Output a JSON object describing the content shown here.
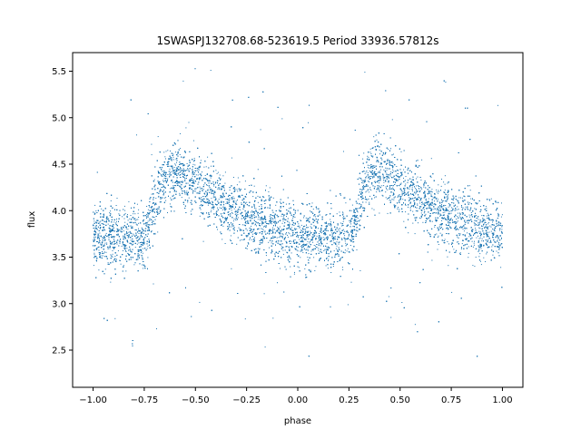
{
  "chart_data": {
    "type": "scatter",
    "title": "1SWASPJ132708.68-523619.5 Period 33936.57812s",
    "xlabel": "phase",
    "ylabel": "flux",
    "xlim": [
      -1.1,
      1.1
    ],
    "ylim": [
      2.1,
      5.7
    ],
    "xticks": [
      -1.0,
      -0.75,
      -0.5,
      -0.25,
      0.0,
      0.25,
      0.5,
      0.75,
      1.0
    ],
    "xtick_labels": [
      "−1.00",
      "−0.75",
      "−0.50",
      "−0.25",
      "0.00",
      "0.25",
      "0.50",
      "0.75",
      "1.00"
    ],
    "yticks": [
      2.5,
      3.0,
      3.5,
      4.0,
      4.5,
      5.0,
      5.5
    ],
    "ytick_labels": [
      "2.5",
      "3.0",
      "3.5",
      "4.0",
      "4.5",
      "5.0",
      "5.5"
    ],
    "grid": false,
    "marker_color": "#1f77b4",
    "series": [
      {
        "profile_phase": [
          0.0,
          0.2,
          0.25,
          0.3,
          0.35,
          0.4,
          0.5,
          0.6,
          0.7,
          0.8,
          0.9,
          1.0
        ],
        "profile_flux": [
          3.72,
          3.7,
          3.72,
          4.05,
          4.4,
          4.42,
          4.28,
          4.12,
          3.98,
          3.88,
          3.8,
          3.74
        ],
        "scatter_std": 0.17,
        "point_count": 14000
      }
    ]
  }
}
